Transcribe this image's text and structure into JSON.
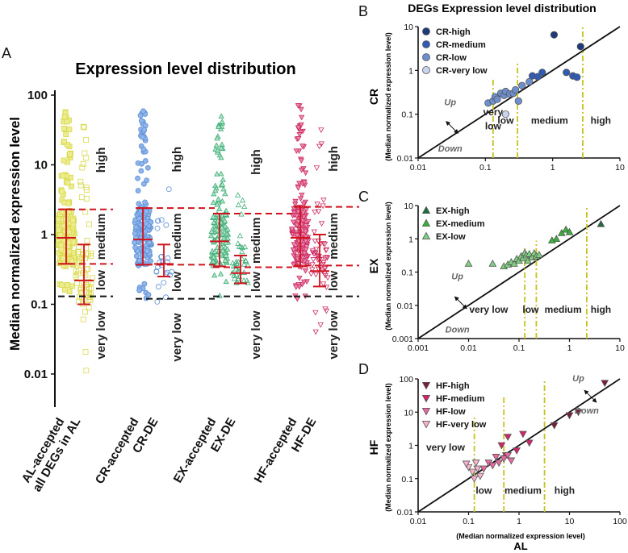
{
  "figure": {
    "A_label": "A",
    "B_label": "B",
    "C_label": "C",
    "D_label": "D"
  },
  "chart_data": [
    {
      "id": "A",
      "type": "scatter",
      "title": "Expression level distribution",
      "ylabel": "Median normalized expression level",
      "yscale": "log",
      "ylim": [
        0.005,
        100
      ],
      "yticks": [
        100,
        10,
        1,
        0.1,
        0.01
      ],
      "ytick_labels": [
        "100",
        "10",
        "1",
        "0.1",
        "0.01"
      ],
      "categories": [
        "AL-accepted all DEGs in AL",
        "CR-accepted",
        "CR-DE",
        "EX-accepted",
        "EX-DE",
        "HF-accepted",
        "HF-DE"
      ],
      "category_labels": [
        [
          "AL-accepted",
          "all DEGs in AL"
        ],
        [
          "CR-accepted",
          "CR-DE"
        ],
        [
          "EX-accepted",
          "EX-DE"
        ],
        [
          "HF-accepted",
          "HF-DE"
        ]
      ],
      "level_labels": [
        "high",
        "medium",
        "low",
        "very low"
      ],
      "groups": [
        {
          "name": "AL-accepted",
          "color": "#d9d94a",
          "marker": "square",
          "median": 0.9,
          "q1": 0.38,
          "q3": 2.3,
          "range": [
            0.13,
            65
          ],
          "n": 190
        },
        {
          "name": "all DEGs in AL",
          "color": "#d9d94a",
          "marker": "square",
          "median": 0.22,
          "q1": 0.1,
          "q3": 0.72,
          "range": [
            0.01,
            50
          ],
          "n": 70
        },
        {
          "name": "CR-accepted",
          "color": "#5b8fd6",
          "marker": "circle",
          "median": 0.85,
          "q1": 0.37,
          "q3": 2.4,
          "range": [
            0.12,
            60
          ],
          "n": 170
        },
        {
          "name": "CR-DE",
          "color": "#5b8fd6",
          "marker": "circle",
          "median": 0.38,
          "q1": 0.25,
          "q3": 0.72,
          "range": [
            0.1,
            6.5
          ],
          "n": 24
        },
        {
          "name": "EX-accepted",
          "color": "#3fae78",
          "marker": "triangle-up",
          "median": 0.8,
          "q1": 0.35,
          "q3": 2.0,
          "range": [
            0.13,
            50
          ],
          "n": 160
        },
        {
          "name": "EX-DE",
          "color": "#3fae78",
          "marker": "triangle-up",
          "median": 0.28,
          "q1": 0.2,
          "q3": 0.5,
          "range": [
            0.13,
            4
          ],
          "n": 38
        },
        {
          "name": "HF-accepted",
          "color": "#cc2a62",
          "marker": "triangle-down",
          "median": 0.9,
          "q1": 0.35,
          "q3": 2.5,
          "range": [
            0.12,
            75
          ],
          "n": 190
        },
        {
          "name": "HF-DE",
          "color": "#cc2a62",
          "marker": "triangle-down",
          "median": 0.3,
          "q1": 0.18,
          "q3": 1.0,
          "range": [
            0.03,
            75
          ],
          "n": 55
        }
      ],
      "thresholds": [
        {
          "group": "AL",
          "high": 2.3,
          "low": 0.38,
          "verylow": 0.13
        },
        {
          "group": "CR",
          "high": 2.4,
          "low": 0.37,
          "verylow": 0.12
        },
        {
          "group": "EX",
          "high": 2.0,
          "low": 0.34,
          "verylow": 0.13
        },
        {
          "group": "HF",
          "high": 2.5,
          "low": 0.36,
          "verylow": 0.13
        }
      ]
    },
    {
      "id": "B",
      "type": "scatter",
      "title": "DEGs Expression level distribution",
      "ylabel_main": "CR",
      "ylabel_sub": "(Median normalized expression level)",
      "xscale": "log",
      "yscale": "log",
      "xlim": [
        0.01,
        10
      ],
      "ylim": [
        0.01,
        10
      ],
      "xticks": [
        "0.01",
        "0.1",
        "1",
        "10"
      ],
      "yticks": [
        "10",
        "1",
        "0.1",
        "0.01"
      ],
      "thresholds": [
        0.13,
        0.3,
        2.8
      ],
      "region_labels": [
        "very",
        "low",
        "low",
        "medium",
        "high"
      ],
      "annotations": {
        "up": "Up",
        "down": "Down"
      },
      "series": [
        {
          "name": "CR-high",
          "color": "#1e3a7a",
          "marker": "circle",
          "points": [
            [
              1.05,
              6.5
            ],
            [
              2.6,
              3.5
            ]
          ]
        },
        {
          "name": "CR-medium",
          "color": "#2f5bb4",
          "marker": "circle",
          "points": [
            [
              0.5,
              0.75
            ],
            [
              0.6,
              0.72
            ],
            [
              0.7,
              0.9
            ],
            [
              1.6,
              0.9
            ],
            [
              2.0,
              0.75
            ],
            [
              2.3,
              0.7
            ]
          ]
        },
        {
          "name": "CR-low",
          "color": "#6d8fcf",
          "marker": "circle",
          "points": [
            [
              0.11,
              0.18
            ],
            [
              0.13,
              0.2
            ],
            [
              0.14,
              0.25
            ],
            [
              0.15,
              0.22
            ],
            [
              0.17,
              0.3
            ],
            [
              0.19,
              0.27
            ],
            [
              0.2,
              0.33
            ],
            [
              0.23,
              0.29
            ],
            [
              0.26,
              0.3
            ],
            [
              0.28,
              0.36
            ],
            [
              0.31,
              0.2
            ],
            [
              0.35,
              0.45
            ],
            [
              0.45,
              0.55
            ]
          ]
        },
        {
          "name": "CR-very low",
          "color": "#c9d4f0",
          "marker": "circle",
          "points": [
            [
              0.2,
              0.1
            ]
          ]
        }
      ]
    },
    {
      "id": "C",
      "type": "scatter",
      "ylabel_main": "EX",
      "ylabel_sub": "(Median normalized expression level)",
      "xscale": "log",
      "yscale": "log",
      "xlim": [
        0.001,
        10
      ],
      "ylim": [
        0.001,
        10
      ],
      "xticks": [
        "0.001",
        "0.01",
        "0.1",
        "1",
        "10"
      ],
      "yticks": [
        "10",
        "1",
        "0.1",
        "0.01",
        "0.001"
      ],
      "thresholds": [
        0.13,
        0.22,
        2.2
      ],
      "region_labels": [
        "very low",
        "low",
        "medium",
        "high"
      ],
      "annotations": {
        "up": "Up",
        "down": "Down"
      },
      "series": [
        {
          "name": "EX-high",
          "color": "#1e6b3c",
          "marker": "triangle-up",
          "points": [
            [
              4.2,
              2.8
            ]
          ]
        },
        {
          "name": "EX-medium",
          "color": "#38b13c",
          "marker": "triangle-up",
          "points": [
            [
              0.55,
              1.0
            ],
            [
              0.7,
              1.5
            ],
            [
              0.85,
              1.9
            ],
            [
              1.0,
              1.6
            ],
            [
              0.45,
              0.9
            ]
          ]
        },
        {
          "name": "EX-low",
          "color": "#7ed27f",
          "marker": "triangle-up",
          "points": [
            [
              0.01,
              0.18
            ],
            [
              0.03,
              0.18
            ],
            [
              0.05,
              0.15
            ],
            [
              0.06,
              0.17
            ],
            [
              0.07,
              0.2
            ],
            [
              0.08,
              0.18
            ],
            [
              0.09,
              0.25
            ],
            [
              0.1,
              0.22
            ],
            [
              0.11,
              0.3
            ],
            [
              0.12,
              0.26
            ],
            [
              0.13,
              0.38
            ],
            [
              0.14,
              0.32
            ],
            [
              0.15,
              0.22
            ],
            [
              0.16,
              0.35
            ],
            [
              0.18,
              0.28
            ],
            [
              0.2,
              0.37
            ],
            [
              0.22,
              0.3
            ],
            [
              0.25,
              0.33
            ]
          ]
        }
      ]
    },
    {
      "id": "D",
      "type": "scatter",
      "ylabel_main": "HF",
      "ylabel_sub": "(Median normalized expression level)",
      "xlabel_sub": "(Median normalized expression level)",
      "xlabel_main": "AL",
      "xscale": "log",
      "yscale": "log",
      "xlim": [
        0.01,
        100
      ],
      "ylim": [
        0.01,
        100
      ],
      "xticks": [
        "0.01",
        "0.1",
        "1",
        "10",
        "100"
      ],
      "yticks": [
        "100",
        "10",
        "1",
        "0.1",
        "0.01"
      ],
      "thresholds": [
        0.13,
        0.5,
        3.2
      ],
      "region_labels": [
        "very low",
        "low",
        "medium",
        "high"
      ],
      "annotations": {
        "up": "Up",
        "down": "Down"
      },
      "series": [
        {
          "name": "HF-high",
          "color": "#7a1e3a",
          "marker": "triangle-down",
          "points": [
            [
              50,
              75
            ],
            [
              15,
              10
            ],
            [
              10,
              8
            ],
            [
              5,
              4
            ]
          ]
        },
        {
          "name": "HF-medium",
          "color": "#d3236b",
          "marker": "triangle-down",
          "points": [
            [
              0.45,
              1.0
            ],
            [
              0.6,
              1.8
            ],
            [
              0.9,
              0.7
            ],
            [
              1.2,
              2.2
            ],
            [
              0.55,
              0.5
            ],
            [
              1.6,
              1.2
            ]
          ]
        },
        {
          "name": "HF-low",
          "color": "#e86aa0",
          "marker": "triangle-down",
          "points": [
            [
              0.2,
              0.2
            ],
            [
              0.25,
              0.3
            ],
            [
              0.3,
              0.25
            ],
            [
              0.35,
              0.45
            ],
            [
              0.4,
              0.3
            ],
            [
              0.5,
              0.4
            ],
            [
              0.6,
              0.5
            ],
            [
              0.7,
              0.35
            ]
          ]
        },
        {
          "name": "HF-very low",
          "color": "#f7b3cf",
          "marker": "triangle-down",
          "points": [
            [
              0.1,
              0.22
            ],
            [
              0.12,
              0.16
            ],
            [
              0.13,
              0.1
            ],
            [
              0.15,
              0.2
            ],
            [
              0.17,
              0.12
            ],
            [
              0.14,
              0.3
            ],
            [
              0.09,
              0.28
            ]
          ]
        }
      ]
    }
  ]
}
